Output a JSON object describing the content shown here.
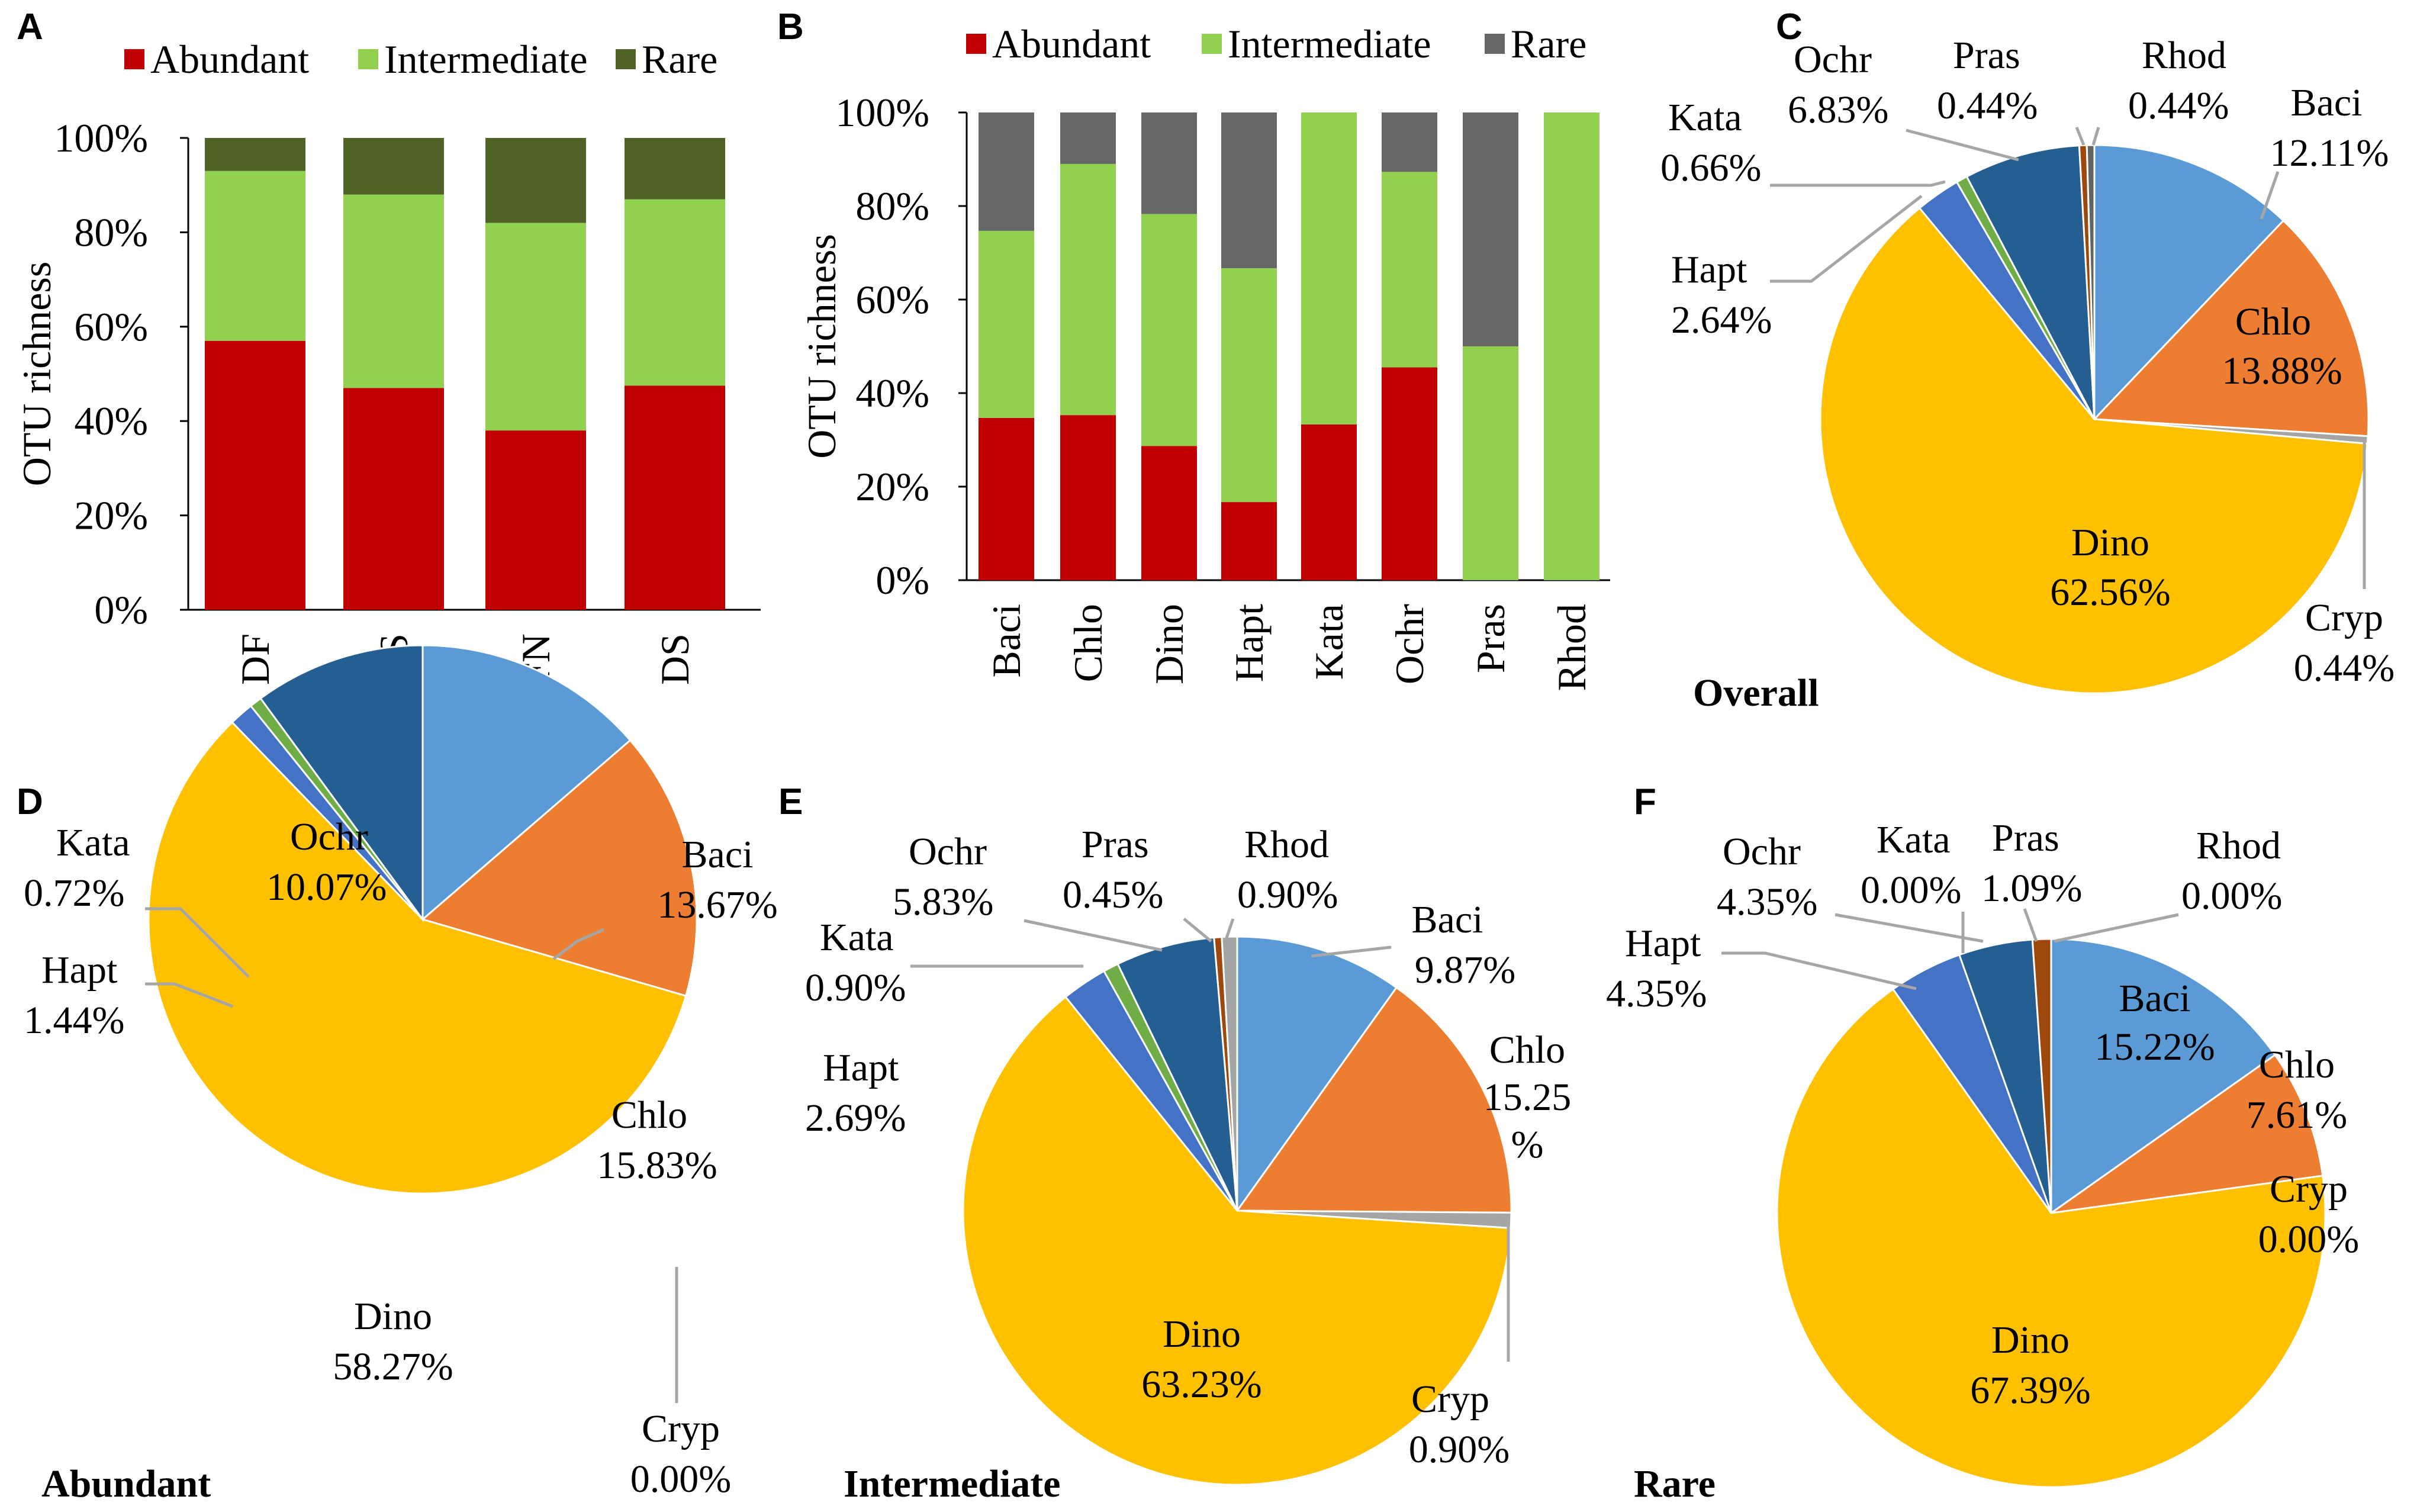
{
  "chart_data": [
    {
      "panel": "A",
      "type": "bar",
      "stacked": true,
      "categories": [
        "DF",
        "XS",
        "FN",
        "DS"
      ],
      "series": [
        {
          "name": "Abundant",
          "values": [
            57,
            47,
            38,
            47.5
          ],
          "color": "#C00000"
        },
        {
          "name": "Intermediate",
          "values": [
            36,
            41,
            44,
            39.5
          ],
          "color": "#92D050"
        },
        {
          "name": "Rare",
          "values": [
            7,
            12,
            18,
            13
          ],
          "color": "#4F6228"
        }
      ],
      "ylabel": "OTU richness",
      "yticks": [
        "0%",
        "20%",
        "40%",
        "60%",
        "80%",
        "100%"
      ],
      "ylim": [
        0,
        100
      ]
    },
    {
      "panel": "B",
      "type": "bar",
      "stacked": true,
      "categories": [
        "Baci",
        "Chlo",
        "Dino",
        "Hapt",
        "Kata",
        "Ochr",
        "Pras",
        "Rhod"
      ],
      "series": [
        {
          "name": "Abundant",
          "values": [
            34.7,
            35.3,
            28.7,
            16.7,
            33.3,
            45.5,
            0,
            0
          ],
          "color": "#C00000"
        },
        {
          "name": "Intermediate",
          "values": [
            40,
            53.7,
            49.6,
            50,
            66.7,
            41.8,
            50,
            100
          ],
          "color": "#92D050"
        },
        {
          "name": "Rare",
          "values": [
            25.3,
            11,
            21.7,
            33.3,
            0,
            12.7,
            50,
            0
          ],
          "color": "#666666"
        }
      ],
      "ylabel": "OTU richness",
      "yticks": [
        "0%",
        "20%",
        "40%",
        "60%",
        "80%",
        "100%"
      ],
      "ylim": [
        0,
        100
      ]
    },
    {
      "panel": "C",
      "type": "pie",
      "title": "Overall",
      "slices": [
        {
          "name": "Baci",
          "value": 12.11,
          "label": "12.11%",
          "color": "#5B9BD5"
        },
        {
          "name": "Chlo",
          "value": 13.88,
          "label": "13.88%",
          "color": "#ED7D31"
        },
        {
          "name": "Cryp",
          "value": 0.44,
          "label": "0.44%",
          "color": "#A5A5A5"
        },
        {
          "name": "Dino",
          "value": 62.56,
          "label": "62.56%",
          "color": "#FFC000"
        },
        {
          "name": "Hapt",
          "value": 2.64,
          "label": "2.64%",
          "color": "#4472C4"
        },
        {
          "name": "Kata",
          "value": 0.66,
          "label": "0.66%",
          "color": "#70AD47"
        },
        {
          "name": "Ochr",
          "value": 6.83,
          "label": "6.83%",
          "color": "#255E91"
        },
        {
          "name": "Pras",
          "value": 0.44,
          "label": "0.44%",
          "color": "#9E480E"
        },
        {
          "name": "Rhod",
          "value": 0.44,
          "label": "0.44%",
          "color": "#636363"
        }
      ]
    },
    {
      "panel": "D",
      "type": "pie",
      "title": "Abundant",
      "slices": [
        {
          "name": "Baci",
          "value": 13.67,
          "label": "13.67%",
          "color": "#5B9BD5"
        },
        {
          "name": "Chlo",
          "value": 15.83,
          "label": "15.83%",
          "color": "#ED7D31"
        },
        {
          "name": "Cryp",
          "value": 0.0,
          "label": "0.00%",
          "color": "#A5A5A5"
        },
        {
          "name": "Dino",
          "value": 58.27,
          "label": "58.27%",
          "color": "#FFC000"
        },
        {
          "name": "Hapt",
          "value": 1.44,
          "label": "1.44%",
          "color": "#4472C4"
        },
        {
          "name": "Kata",
          "value": 0.72,
          "label": "0.72%",
          "color": "#70AD47"
        },
        {
          "name": "Ochr",
          "value": 10.07,
          "label": "10.07%",
          "color": "#255E91"
        }
      ]
    },
    {
      "panel": "E",
      "type": "pie",
      "title": "Intermediate",
      "slices": [
        {
          "name": "Baci",
          "value": 9.87,
          "label": "9.87%",
          "color": "#5B9BD5"
        },
        {
          "name": "Chlo",
          "value": 15.25,
          "label": "15.25 %",
          "color": "#ED7D31"
        },
        {
          "name": "Cryp",
          "value": 0.9,
          "label": "0.90%",
          "color": "#A5A5A5"
        },
        {
          "name": "Dino",
          "value": 63.23,
          "label": "63.23%",
          "color": "#FFC000"
        },
        {
          "name": "Hapt",
          "value": 2.69,
          "label": "2.69%",
          "color": "#4472C4"
        },
        {
          "name": "Kata",
          "value": 0.9,
          "label": "0.90%",
          "color": "#70AD47"
        },
        {
          "name": "Ochr",
          "value": 5.83,
          "label": "5.83%",
          "color": "#255E91"
        },
        {
          "name": "Pras",
          "value": 0.45,
          "label": "0.45%",
          "color": "#9E480E"
        },
        {
          "name": "Rhod",
          "value": 0.9,
          "label": "0.90%",
          "color": "#A5A5A5"
        }
      ]
    },
    {
      "panel": "F",
      "type": "pie",
      "title": "Rare",
      "slices": [
        {
          "name": "Baci",
          "value": 15.22,
          "label": "15.22%",
          "color": "#5B9BD5"
        },
        {
          "name": "Chlo",
          "value": 7.61,
          "label": "7.61%",
          "color": "#ED7D31"
        },
        {
          "name": "Cryp",
          "value": 0.0,
          "label": "0.00%",
          "color": "#A5A5A5"
        },
        {
          "name": "Dino",
          "value": 67.39,
          "label": "67.39%",
          "color": "#FFC000"
        },
        {
          "name": "Hapt",
          "value": 4.35,
          "label": "4.35%",
          "color": "#4472C4"
        },
        {
          "name": "Kata",
          "value": 0.0,
          "label": "0.00%",
          "color": "#70AD47"
        },
        {
          "name": "Ochr",
          "value": 4.35,
          "label": "4.35%",
          "color": "#255E91"
        },
        {
          "name": "Pras",
          "value": 1.09,
          "label": "1.09%",
          "color": "#9E480E"
        },
        {
          "name": "Rhod",
          "value": 0.0,
          "label": "0.00%",
          "color": "#636363"
        }
      ]
    }
  ]
}
